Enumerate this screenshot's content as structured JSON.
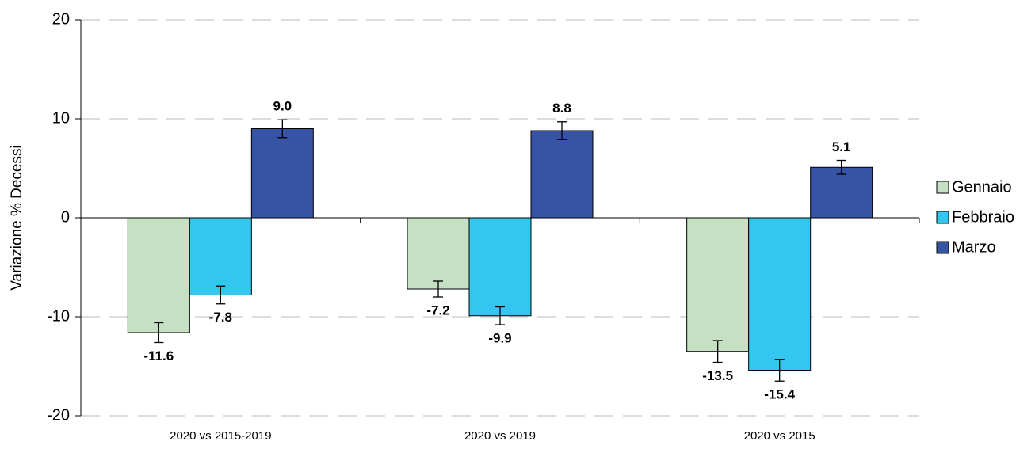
{
  "chart_data": {
    "type": "bar",
    "y_label": "Variazione % Decessi",
    "categories": [
      "2020 vs 2015-2019",
      "2020 vs 2019",
      "2020 vs 2015"
    ],
    "series": [
      {
        "name": "Gennaio",
        "color": "#c5e0c2",
        "values": [
          -11.6,
          -7.2,
          -13.5
        ],
        "value_labels": [
          "-11.6",
          "-7.2",
          "-13.5"
        ],
        "errors": [
          1.0,
          0.8,
          1.1
        ]
      },
      {
        "name": "Febbraio",
        "color": "#33c7f0",
        "values": [
          -7.8,
          -9.9,
          -15.4
        ],
        "value_labels": [
          "-7.8",
          "-9.9",
          "-15.4"
        ],
        "errors": [
          0.9,
          0.9,
          1.1
        ]
      },
      {
        "name": "Marzo",
        "color": "#3653a4",
        "values": [
          9.0,
          8.8,
          5.1
        ],
        "value_labels": [
          "9.0",
          "8.8",
          "5.1"
        ],
        "errors": [
          0.9,
          0.9,
          0.7
        ]
      }
    ],
    "ylim": [
      -20,
      20
    ],
    "yticks": [
      -20,
      -10,
      0,
      10,
      20
    ],
    "grid": true,
    "legend": "right"
  }
}
